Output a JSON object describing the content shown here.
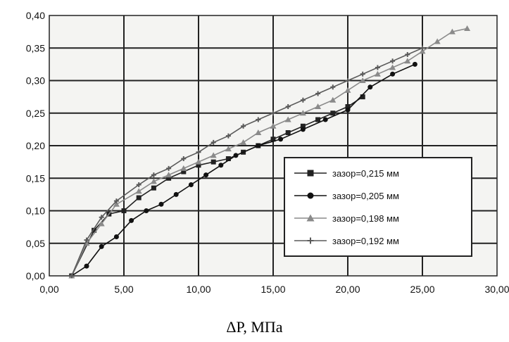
{
  "chart_data": {
    "type": "line",
    "xlabel": "ΔP, МПа",
    "xlim": [
      0,
      30
    ],
    "ylim": [
      0,
      0.4
    ],
    "xticks": [
      "0,00",
      "5,00",
      "10,00",
      "15,00",
      "20,00",
      "25,00",
      "30,00"
    ],
    "yticks": [
      "0,00",
      "0,05",
      "0,10",
      "0,15",
      "0,20",
      "0,25",
      "0,30",
      "0,35",
      "0,40"
    ],
    "grid": true,
    "legend_position": "right",
    "series": [
      {
        "name": "зазор=0,215 мм",
        "color": "#222222",
        "marker": "square",
        "points": [
          [
            1.5,
            0
          ],
          [
            3,
            0.07
          ],
          [
            4,
            0.095
          ],
          [
            5,
            0.1
          ],
          [
            6,
            0.12
          ],
          [
            7,
            0.135
          ],
          [
            8,
            0.15
          ],
          [
            9,
            0.16
          ],
          [
            10,
            0.17
          ],
          [
            11,
            0.175
          ],
          [
            12,
            0.18
          ],
          [
            13,
            0.19
          ],
          [
            14,
            0.2
          ],
          [
            15,
            0.21
          ],
          [
            16,
            0.22
          ],
          [
            17,
            0.23
          ],
          [
            18,
            0.24
          ],
          [
            19,
            0.25
          ],
          [
            20,
            0.26
          ],
          [
            21,
            0.275
          ]
        ]
      },
      {
        "name": "зазор=0,205 мм",
        "color": "#111111",
        "marker": "circle",
        "points": [
          [
            1.5,
            0
          ],
          [
            2.5,
            0.015
          ],
          [
            3.5,
            0.045
          ],
          [
            4.5,
            0.06
          ],
          [
            5.5,
            0.085
          ],
          [
            6.5,
            0.1
          ],
          [
            7.5,
            0.11
          ],
          [
            8.5,
            0.125
          ],
          [
            9.5,
            0.14
          ],
          [
            10.5,
            0.155
          ],
          [
            11.5,
            0.17
          ],
          [
            12.5,
            0.185
          ],
          [
            14,
            0.2
          ],
          [
            15.5,
            0.21
          ],
          [
            17,
            0.225
          ],
          [
            18.5,
            0.24
          ],
          [
            20,
            0.255
          ],
          [
            21.5,
            0.29
          ],
          [
            23,
            0.31
          ],
          [
            24.5,
            0.325
          ]
        ]
      },
      {
        "name": "зазор=0,198 мм",
        "color": "#8a8a8a",
        "marker": "triangle",
        "points": [
          [
            1.5,
            0
          ],
          [
            2.5,
            0.05
          ],
          [
            3.5,
            0.08
          ],
          [
            4.5,
            0.11
          ],
          [
            6,
            0.13
          ],
          [
            7,
            0.145
          ],
          [
            8,
            0.155
          ],
          [
            9,
            0.165
          ],
          [
            10,
            0.175
          ],
          [
            11,
            0.185
          ],
          [
            12,
            0.195
          ],
          [
            13,
            0.205
          ],
          [
            14,
            0.22
          ],
          [
            15,
            0.23
          ],
          [
            16,
            0.24
          ],
          [
            17,
            0.25
          ],
          [
            18,
            0.26
          ],
          [
            19,
            0.27
          ],
          [
            20,
            0.285
          ],
          [
            21,
            0.3
          ],
          [
            22,
            0.31
          ],
          [
            23,
            0.32
          ],
          [
            24,
            0.33
          ],
          [
            25,
            0.345
          ],
          [
            26,
            0.36
          ],
          [
            27,
            0.375
          ],
          [
            28,
            0.38
          ]
        ]
      },
      {
        "name": "зазор=0,192 мм",
        "color": "#5a5a5a",
        "marker": "plus",
        "points": [
          [
            1.5,
            0
          ],
          [
            2.5,
            0.055
          ],
          [
            3.5,
            0.09
          ],
          [
            4.5,
            0.115
          ],
          [
            6,
            0.14
          ],
          [
            7,
            0.155
          ],
          [
            8,
            0.165
          ],
          [
            9,
            0.18
          ],
          [
            10,
            0.19
          ],
          [
            11,
            0.205
          ],
          [
            12,
            0.215
          ],
          [
            13,
            0.23
          ],
          [
            14,
            0.24
          ],
          [
            15,
            0.25
          ],
          [
            16,
            0.26
          ],
          [
            17,
            0.27
          ],
          [
            18,
            0.28
          ],
          [
            19,
            0.29
          ],
          [
            20,
            0.3
          ],
          [
            21,
            0.31
          ],
          [
            22,
            0.32
          ],
          [
            23,
            0.33
          ],
          [
            24,
            0.34
          ],
          [
            25,
            0.35
          ]
        ]
      }
    ]
  }
}
